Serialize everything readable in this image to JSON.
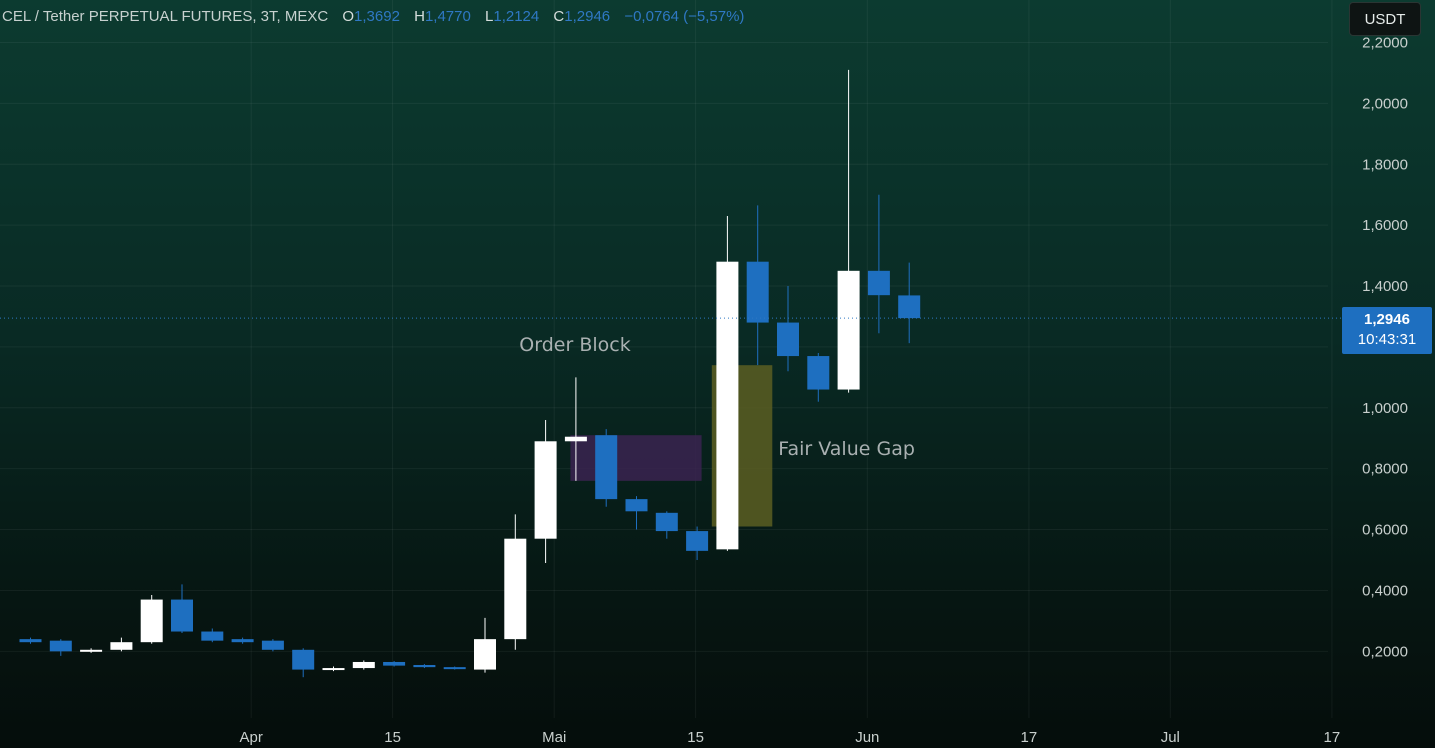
{
  "header": {
    "symbol": "CEL / Tether PERPETUAL FUTURES, 3T, MEXC",
    "open_label": "O",
    "open_value": "1,3692",
    "high_label": "H",
    "high_value": "1,4770",
    "low_label": "L",
    "low_value": "1,2124",
    "close_label": "C",
    "close_value": "1,2946",
    "change": "−0,0764 (−5,57%)"
  },
  "currency_button": "USDT",
  "price_label": {
    "value": "1,2946",
    "countdown": "10:43:31"
  },
  "colors": {
    "up": "#ffffff",
    "down": "#1e6fc0",
    "order_block": "#3a2350",
    "fvg": "#5a5e22",
    "annotation": "#a9b0b1",
    "axis_text": "#c9d0ce"
  },
  "chart_data": {
    "type": "candlestick",
    "timeframe": "3 days",
    "y_axis": {
      "ylim": [
        0.05,
        2.2
      ],
      "ticks": [
        0.2,
        0.4,
        0.6,
        0.8,
        1.0,
        1.2,
        1.4,
        1.6,
        1.8,
        2.0,
        2.2
      ],
      "tick_labels": [
        "0,2000",
        "0,4000",
        "0,6000",
        "0,8000",
        "1,0000",
        "1,2000",
        "1,4000",
        "1,6000",
        "1,8000",
        "2,0000",
        "2,2000"
      ]
    },
    "x_axis": {
      "start_date": "2023-03-10",
      "end_date": "2023-07-22",
      "tick_dates": [
        "2023-04-01",
        "2023-04-15",
        "2023-05-01",
        "2023-05-15",
        "2023-06-01",
        "2023-06-17",
        "2023-07-01",
        "2023-07-17"
      ],
      "tick_labels": [
        "Apr",
        "15",
        "Mai",
        "15",
        "Jun",
        "17",
        "Jul",
        "17"
      ]
    },
    "candles": [
      {
        "date": "2023-03-10",
        "open": 0.24,
        "high": 0.245,
        "low": 0.225,
        "close": 0.23
      },
      {
        "date": "2023-03-13",
        "open": 0.235,
        "high": 0.24,
        "low": 0.185,
        "close": 0.2
      },
      {
        "date": "2023-03-16",
        "open": 0.2,
        "high": 0.21,
        "low": 0.195,
        "close": 0.205
      },
      {
        "date": "2023-03-19",
        "open": 0.205,
        "high": 0.245,
        "low": 0.2,
        "close": 0.23
      },
      {
        "date": "2023-03-22",
        "open": 0.23,
        "high": 0.385,
        "low": 0.225,
        "close": 0.37
      },
      {
        "date": "2023-03-25",
        "open": 0.37,
        "high": 0.42,
        "low": 0.26,
        "close": 0.265
      },
      {
        "date": "2023-03-28",
        "open": 0.265,
        "high": 0.275,
        "low": 0.23,
        "close": 0.235
      },
      {
        "date": "2023-03-31",
        "open": 0.24,
        "high": 0.245,
        "low": 0.225,
        "close": 0.23
      },
      {
        "date": "2023-04-03",
        "open": 0.235,
        "high": 0.24,
        "low": 0.2,
        "close": 0.205
      },
      {
        "date": "2023-04-06",
        "open": 0.205,
        "high": 0.21,
        "low": 0.115,
        "close": 0.14
      },
      {
        "date": "2023-04-09",
        "open": 0.14,
        "high": 0.15,
        "low": 0.135,
        "close": 0.145
      },
      {
        "date": "2023-04-12",
        "open": 0.145,
        "high": 0.17,
        "low": 0.14,
        "close": 0.165
      },
      {
        "date": "2023-04-15",
        "open": 0.165,
        "high": 0.168,
        "low": 0.15,
        "close": 0.153
      },
      {
        "date": "2023-04-18",
        "open": 0.155,
        "high": 0.158,
        "low": 0.145,
        "close": 0.148
      },
      {
        "date": "2023-04-21",
        "open": 0.148,
        "high": 0.15,
        "low": 0.14,
        "close": 0.145
      },
      {
        "date": "2023-04-24",
        "open": 0.14,
        "high": 0.31,
        "low": 0.13,
        "close": 0.24
      },
      {
        "date": "2023-04-27",
        "open": 0.24,
        "high": 0.65,
        "low": 0.205,
        "close": 0.57
      },
      {
        "date": "2023-04-30",
        "open": 0.57,
        "high": 0.96,
        "low": 0.49,
        "close": 0.89
      },
      {
        "date": "2023-05-03",
        "open": 0.89,
        "high": 1.1,
        "low": 0.76,
        "close": 0.905
      },
      {
        "date": "2023-05-06",
        "open": 0.91,
        "high": 0.93,
        "low": 0.675,
        "close": 0.7
      },
      {
        "date": "2023-05-09",
        "open": 0.7,
        "high": 0.71,
        "low": 0.6,
        "close": 0.66
      },
      {
        "date": "2023-05-12",
        "open": 0.655,
        "high": 0.66,
        "low": 0.57,
        "close": 0.595
      },
      {
        "date": "2023-05-15",
        "open": 0.595,
        "high": 0.61,
        "low": 0.5,
        "close": 0.53
      },
      {
        "date": "2023-05-18",
        "open": 0.535,
        "high": 1.63,
        "low": 0.53,
        "close": 1.48
      },
      {
        "date": "2023-05-21",
        "open": 1.48,
        "high": 1.665,
        "low": 1.14,
        "close": 1.28
      },
      {
        "date": "2023-05-24",
        "open": 1.28,
        "high": 1.4,
        "low": 1.12,
        "close": 1.17
      },
      {
        "date": "2023-05-27",
        "open": 1.17,
        "high": 1.18,
        "low": 1.02,
        "close": 1.06
      },
      {
        "date": "2023-05-30",
        "open": 1.06,
        "high": 2.11,
        "low": 1.05,
        "close": 1.45
      },
      {
        "date": "2023-06-02",
        "open": 1.45,
        "high": 1.7,
        "low": 1.245,
        "close": 1.37
      },
      {
        "date": "2023-06-05",
        "open": 1.3692,
        "high": 1.477,
        "low": 1.2124,
        "close": 1.2946
      }
    ],
    "last_price": 1.2946,
    "annotations": [
      {
        "type": "zone",
        "label": "Order Block",
        "x_start": "2023-05-03",
        "x_end": "2023-05-15",
        "y_low": 0.76,
        "y_high": 0.91
      },
      {
        "type": "zone",
        "label": "Fair Value Gap",
        "x_start": "2023-05-17",
        "x_end": "2023-05-22",
        "y_low": 0.61,
        "y_high": 1.14
      }
    ],
    "grid": true
  }
}
